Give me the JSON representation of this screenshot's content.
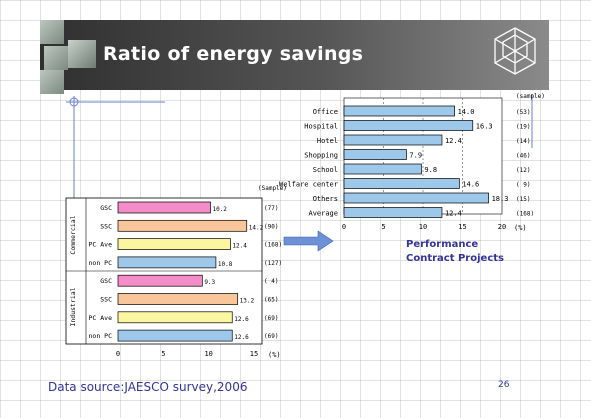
{
  "slide": {
    "title": "Ratio of energy savings",
    "source": "Data source:JAESCO survey,2006",
    "page_number": "26",
    "annotation_line1": "Performance",
    "annotation_line2": "Contract Projects"
  },
  "colors": {
    "header": "#3a3a3a",
    "bar_blue": "#9ec8ea",
    "bar_pink": "#f48cc8",
    "bar_orange": "#f9c59a",
    "bar_yellow": "#fbf7a0",
    "accent_text": "#333399"
  },
  "chart_data": [
    {
      "type": "bar",
      "orientation": "horizontal",
      "title": "",
      "categories": [
        "Office",
        "Hospital",
        "Hotel",
        "Shopping",
        "School",
        "Welfare center",
        "Others",
        "Average"
      ],
      "values": [
        14.0,
        16.3,
        12.4,
        7.9,
        9.8,
        14.6,
        18.3,
        12.4
      ],
      "value_labels": [
        "14.0",
        "16.3",
        "12.4",
        "7.9",
        "9.8",
        "14.6",
        "18.3",
        "12.4"
      ],
      "samples_header": "(sample)",
      "samples": [
        "(53)",
        "(19)",
        "(14)",
        "(46)",
        "(12)",
        "( 9)",
        "(15)",
        "(168)"
      ],
      "xlim": [
        0,
        20
      ],
      "xticks": [
        "0",
        "5",
        "10",
        "15",
        "20"
      ],
      "xunit": "(%)"
    },
    {
      "type": "bar",
      "orientation": "horizontal",
      "title": "",
      "groups": [
        "Commercial",
        "Industrial"
      ],
      "categories": [
        "GSC",
        "SSC",
        "PC Ave",
        "non PC",
        "GSC",
        "SSC",
        "PC Ave",
        "non PC"
      ],
      "values": [
        10.2,
        14.2,
        12.4,
        10.8,
        9.3,
        13.2,
        12.6,
        12.6
      ],
      "value_labels": [
        "10.2",
        "14.2",
        "12.4",
        "10.8",
        "9.3",
        "13.2",
        "12.6",
        "12.6"
      ],
      "bar_colors": [
        "#f48cc8",
        "#f9c59a",
        "#fbf7a0",
        "#9ec8ea",
        "#f48cc8",
        "#f9c59a",
        "#fbf7a0",
        "#9ec8ea"
      ],
      "samples_header": "(Sample)",
      "samples": [
        "(77)",
        "(90)",
        "(168)",
        "(127)",
        "( 4)",
        "(65)",
        "(69)",
        "(69)"
      ],
      "xlim": [
        0,
        15
      ],
      "xticks": [
        "0",
        "5",
        "10",
        "15"
      ],
      "xunit": "(%)"
    }
  ]
}
